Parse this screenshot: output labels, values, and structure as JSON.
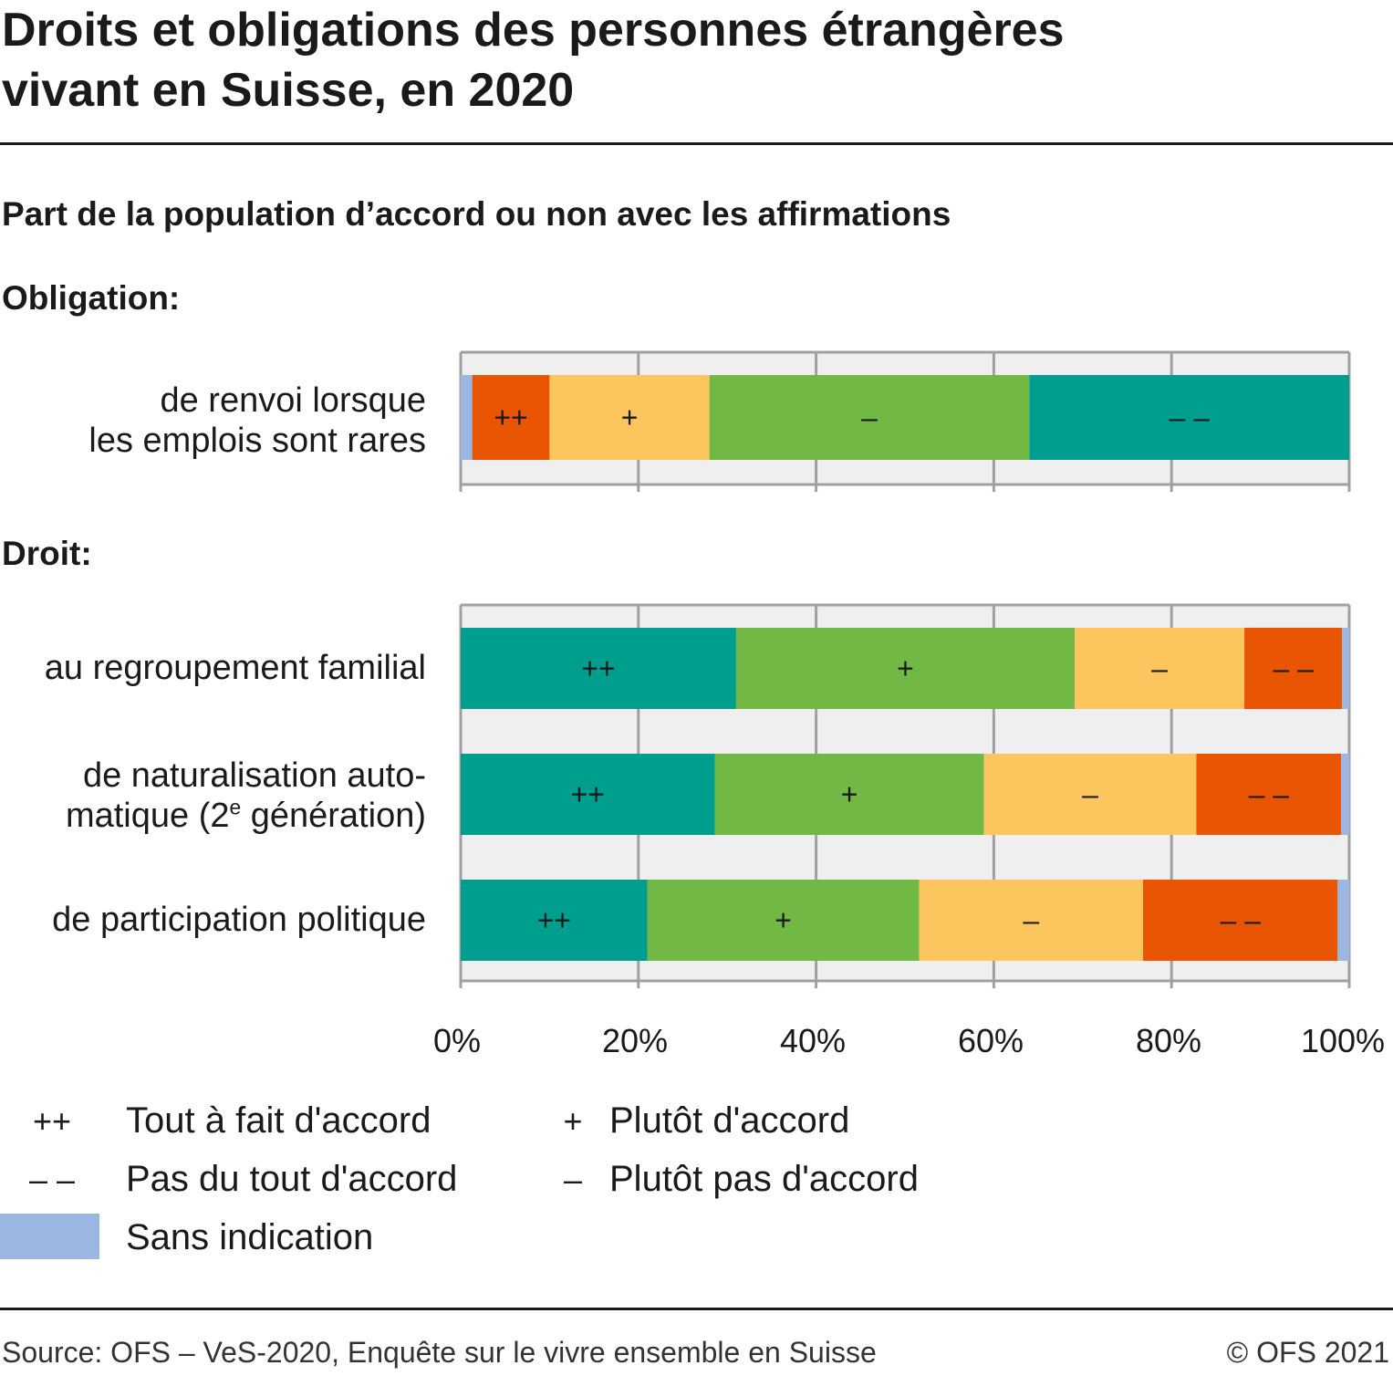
{
  "title_lines": [
    "Droits et obligations des personnes étrangères",
    "vivant en Suisse, en 2020"
  ],
  "subtitle": "Part de la population d’accord ou non avec les affirmations",
  "colors": {
    "tout_a_fait_accord": "#009e8f",
    "plutot_accord": "#72b844",
    "plutot_pas_accord": "#fcc55e",
    "pas_du_tout_accord": "#ea5503",
    "sans_indication": "#9bb7e1",
    "plot_background": "#efefef",
    "grid": "#a0a0a0"
  },
  "chart_data": [
    {
      "type": "bar",
      "orientation": "horizontal-stacked-100",
      "group_label": "Obligation:",
      "categories": [
        [
          "de renvoi lorsque",
          "les emplois sont rares"
        ]
      ],
      "segment_order": [
        "sans_indication",
        "pas_du_tout_accord",
        "plutot_pas_accord",
        "plutot_accord",
        "tout_a_fait_accord"
      ],
      "series": [
        {
          "key": "sans_indication",
          "symbol": "",
          "values": [
            1.3
          ]
        },
        {
          "key": "pas_du_tout_accord",
          "symbol": "++",
          "values": [
            8.7
          ]
        },
        {
          "key": "plutot_pas_accord",
          "symbol": "+",
          "values": [
            18.0
          ]
        },
        {
          "key": "plutot_accord",
          "symbol": "–",
          "values": [
            36.0
          ]
        },
        {
          "key": "tout_a_fait_accord",
          "symbol": "– –",
          "values": [
            36.0
          ]
        }
      ],
      "xlim": [
        0,
        100
      ]
    },
    {
      "type": "bar",
      "orientation": "horizontal-stacked-100",
      "group_label": "Droit:",
      "categories": [
        [
          "au regroupement familial"
        ],
        [
          "de naturalisation auto-",
          "matique (2|e| génération)"
        ],
        [
          "de participation politique"
        ]
      ],
      "segment_order": [
        "tout_a_fait_accord",
        "plutot_accord",
        "plutot_pas_accord",
        "pas_du_tout_accord",
        "sans_indication"
      ],
      "series": [
        {
          "key": "tout_a_fait_accord",
          "symbol": "++",
          "values": [
            31.0,
            28.6,
            21.0
          ]
        },
        {
          "key": "plutot_accord",
          "symbol": "+",
          "values": [
            38.1,
            30.3,
            30.6
          ]
        },
        {
          "key": "plutot_pas_accord",
          "symbol": "–",
          "values": [
            19.1,
            23.9,
            25.2
          ]
        },
        {
          "key": "pas_du_tout_accord",
          "symbol": "– –",
          "values": [
            11.0,
            16.3,
            21.9
          ]
        },
        {
          "key": "sans_indication",
          "symbol": "",
          "values": [
            0.8,
            0.9,
            1.3
          ]
        }
      ],
      "xlim": [
        0,
        100
      ],
      "x_ticks": [
        "0%",
        "20%",
        "40%",
        "60%",
        "80%",
        "100%"
      ]
    }
  ],
  "legend": [
    {
      "symbol": "++",
      "label": "Tout à fait d'accord"
    },
    {
      "symbol": "+",
      "label": "Plutôt d'accord"
    },
    {
      "symbol": "– –",
      "label": "Pas du tout d'accord"
    },
    {
      "symbol": "–",
      "label": "Plutôt pas d'accord"
    },
    {
      "symbol": "",
      "label": "Sans indication"
    }
  ],
  "footer": {
    "source": "Source: OFS – VeS-2020, Enquête sur le vivre ensemble en Suisse",
    "copyright": "© OFS 2021"
  }
}
